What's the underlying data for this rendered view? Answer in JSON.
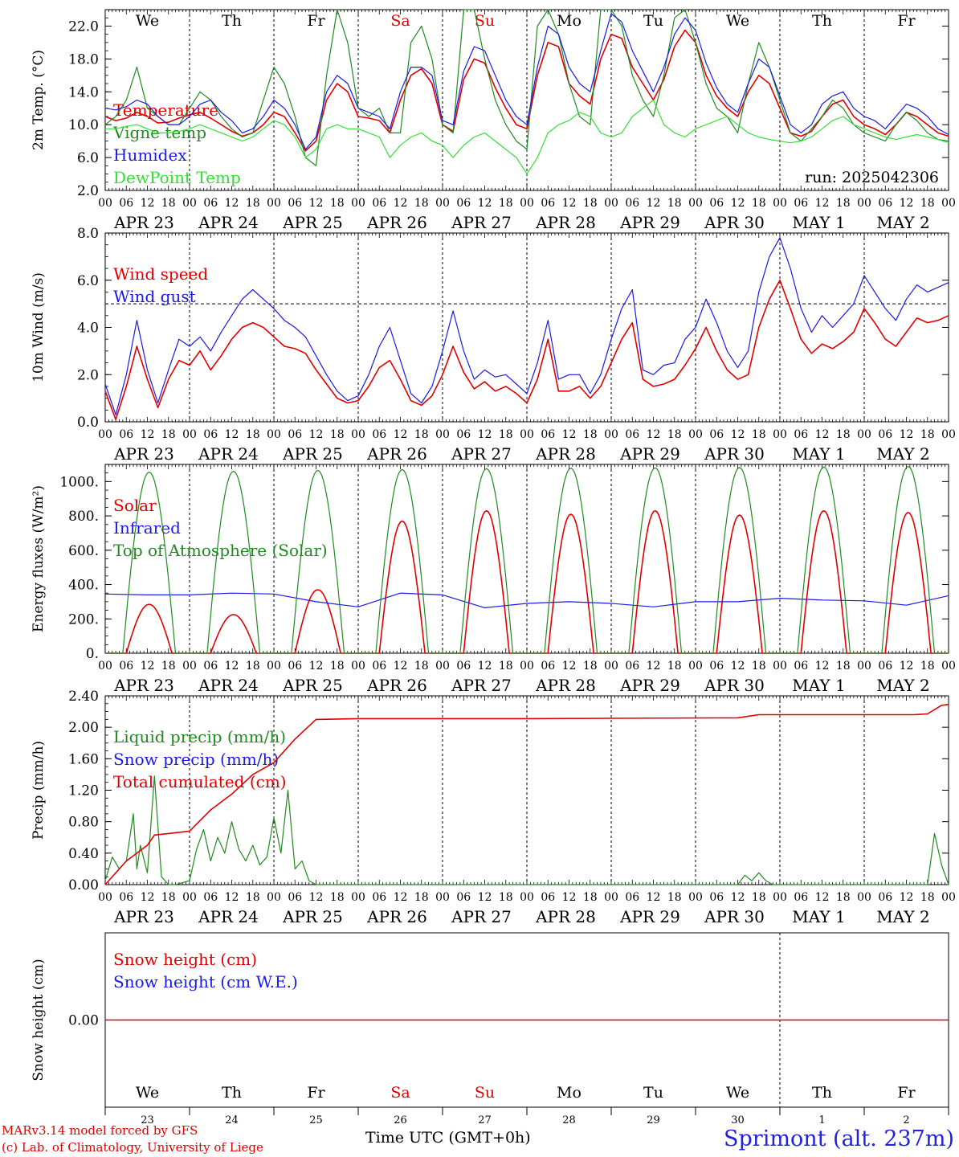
{
  "footer": {
    "credit_model": "MARv3.14 model forced by GFS",
    "credit_lab": "(c) Lab. of Climatology, University of Liege",
    "time_axis": "Time UTC (GMT+0h)",
    "station": "Sprimont (alt. 237m)"
  },
  "colors": {
    "red": "#e00000",
    "blue": "#1a1ae6",
    "green": "#1f8a1f",
    "lightgreen": "#33e033",
    "weekend": "#e00000"
  },
  "chart_data": [
    {
      "type": "line",
      "ylabel": "2m Temp. (°C)",
      "ylim": [
        2,
        24
      ],
      "yticks": [
        2,
        6,
        10,
        14,
        18,
        22
      ],
      "ytick_labels": [
        "2.0",
        "6.0",
        "10.0",
        "14.0",
        "18.0",
        "22.0"
      ],
      "hour_ticks": [
        "00",
        "06",
        "12",
        "18"
      ],
      "day_labels": [
        "APR 23",
        "APR 24",
        "APR 25",
        "APR 26",
        "APR 27",
        "APR 28",
        "APR 29",
        "APR 30",
        "MAY  1",
        "MAY  2"
      ],
      "weekdays": [
        "We",
        "Th",
        "Fr",
        "Sa",
        "Su",
        "Mo",
        "Tu",
        "We",
        "Th",
        "Fr"
      ],
      "weekend_days": [
        3,
        4
      ],
      "annotation": "run: 2025042306",
      "x_hours": [
        0,
        3,
        6,
        9,
        12,
        15,
        18,
        21,
        24,
        27,
        30,
        33,
        36,
        39,
        42,
        45,
        48,
        51,
        54,
        57,
        60,
        63,
        66,
        69,
        72,
        75,
        78,
        81,
        84,
        87,
        90,
        93,
        96,
        99,
        102,
        105,
        108,
        111,
        114,
        117,
        120,
        123,
        126,
        129,
        132,
        135,
        138,
        141,
        144,
        147,
        150,
        153,
        156,
        159,
        162,
        165,
        168,
        171,
        174,
        177,
        180,
        183,
        186,
        189,
        192,
        195,
        198,
        201,
        204,
        207,
        210,
        213,
        216,
        219,
        222,
        225,
        228,
        231,
        234,
        237,
        240
      ],
      "series": [
        {
          "name": "Temperature",
          "color": "red",
          "values": [
            11,
            10.5,
            10.8,
            11.5,
            11,
            10.2,
            10.3,
            10.8,
            11.2,
            11.5,
            10.8,
            10,
            9.2,
            8.6,
            9,
            10,
            11.5,
            11,
            9,
            6.8,
            8,
            13,
            15,
            14,
            11,
            10.8,
            10.5,
            9,
            13,
            16,
            16.8,
            15,
            10,
            9.2,
            15.5,
            18,
            17.5,
            14.5,
            12,
            10,
            9.5,
            16,
            20,
            19.5,
            15,
            13.5,
            12.5,
            18,
            21,
            20.5,
            17,
            15,
            13,
            15.5,
            19.5,
            21.5,
            20,
            16,
            13.5,
            12,
            11,
            14,
            16,
            15,
            12,
            9,
            8.6,
            9.2,
            11,
            12.5,
            13,
            11,
            10,
            9.5,
            8.8,
            10,
            11.5,
            11,
            10,
            9,
            8.6
          ]
        },
        {
          "name": "Vigne temp",
          "color": "green",
          "values": [
            10,
            11,
            13,
            17,
            12,
            11,
            10,
            10,
            12,
            14,
            13,
            11,
            9.5,
            8.5,
            9,
            13,
            17,
            15,
            11,
            6,
            5,
            16,
            24,
            20,
            12,
            11,
            12,
            9,
            9,
            20,
            22,
            18,
            10,
            9,
            24,
            24,
            18,
            13,
            10,
            8,
            7,
            22,
            24,
            21,
            15,
            11,
            10,
            24,
            24,
            22,
            16,
            13,
            11,
            16,
            23,
            24,
            20,
            15,
            12,
            11,
            9,
            15,
            20,
            17,
            13,
            9,
            8,
            9.5,
            11,
            13,
            12,
            10,
            9,
            8.5,
            8,
            10,
            11.5,
            10.5,
            9,
            8.2,
            8
          ]
        },
        {
          "name": "Humidex",
          "color": "blue",
          "values": [
            12,
            11.8,
            12.2,
            13,
            12.5,
            11,
            10,
            10,
            11,
            12.5,
            13,
            11.5,
            10.5,
            9,
            9.5,
            11,
            13,
            12,
            10,
            7,
            8.5,
            14,
            16,
            15,
            12,
            11.5,
            11,
            9.5,
            14,
            17,
            17,
            16,
            10.5,
            10,
            16.5,
            19.5,
            19,
            16,
            13,
            11,
            10,
            17,
            22,
            21,
            17,
            15,
            14,
            19,
            23.5,
            22.5,
            19,
            16.5,
            14,
            17,
            21,
            23,
            21.5,
            17.5,
            14.5,
            12.5,
            11.5,
            15,
            18,
            17,
            13.5,
            10,
            9,
            10,
            12.5,
            13.5,
            14,
            12,
            11,
            10.5,
            9.5,
            11,
            12.5,
            12,
            11,
            9.5,
            8.8
          ]
        },
        {
          "name": "DewPoint Temp",
          "color": "lightgreen",
          "values": [
            9.5,
            9.5,
            9.8,
            10,
            9.5,
            9,
            9,
            9.2,
            9.5,
            10,
            9.5,
            9,
            8.5,
            8,
            8.5,
            9.5,
            10.5,
            10,
            8.5,
            6,
            7,
            9.5,
            10,
            9.5,
            9.5,
            9,
            8.5,
            6,
            7.5,
            8.5,
            9,
            8,
            7.5,
            6,
            7.5,
            8.5,
            9,
            8,
            7,
            6,
            4,
            6,
            9,
            10,
            10.5,
            11.5,
            11,
            9,
            8.5,
            9,
            11,
            12,
            13,
            10,
            9,
            8.5,
            9.5,
            10,
            10.5,
            11,
            10,
            9,
            8.5,
            8.2,
            8,
            7.8,
            8,
            8.5,
            9.5,
            10.5,
            11,
            10,
            9.5,
            9,
            8.5,
            8.2,
            8.5,
            8.8,
            8.5,
            8.2,
            7.8
          ]
        }
      ]
    },
    {
      "type": "line",
      "ylabel": "10m Wind (m/s)",
      "ylim": [
        0,
        8
      ],
      "yticks": [
        0,
        2,
        4,
        6,
        8
      ],
      "ytick_labels": [
        "0.0",
        "2.0",
        "4.0",
        "6.0",
        "8.0"
      ],
      "hour_ticks": [
        "00",
        "06",
        "12",
        "18"
      ],
      "day_labels": [
        "APR 23",
        "APR 24",
        "APR 25",
        "APR 26",
        "APR 27",
        "APR 28",
        "APR 29",
        "APR 30",
        "MAY  1",
        "MAY  2"
      ],
      "reference_line": 5,
      "x_hours": [
        0,
        3,
        6,
        9,
        12,
        15,
        18,
        21,
        24,
        27,
        30,
        33,
        36,
        39,
        42,
        45,
        48,
        51,
        54,
        57,
        60,
        63,
        66,
        69,
        72,
        75,
        78,
        81,
        84,
        87,
        90,
        93,
        96,
        99,
        102,
        105,
        108,
        111,
        114,
        117,
        120,
        123,
        126,
        129,
        132,
        135,
        138,
        141,
        144,
        147,
        150,
        153,
        156,
        159,
        162,
        165,
        168,
        171,
        174,
        177,
        180,
        183,
        186,
        189,
        192,
        195,
        198,
        201,
        204,
        207,
        210,
        213,
        216,
        219,
        222,
        225,
        228,
        231,
        234,
        237,
        240
      ],
      "series": [
        {
          "name": "Wind speed",
          "color": "red",
          "values": [
            1.3,
            0.1,
            1.5,
            3.2,
            1.8,
            0.6,
            1.8,
            2.6,
            2.4,
            3.0,
            2.2,
            2.8,
            3.5,
            4.0,
            4.2,
            4.0,
            3.6,
            3.2,
            3.1,
            2.9,
            2.2,
            1.6,
            1.0,
            0.8,
            0.9,
            1.5,
            2.3,
            2.6,
            1.8,
            0.9,
            0.7,
            1.1,
            2.0,
            3.2,
            2.1,
            1.4,
            1.7,
            1.3,
            1.5,
            1.2,
            0.8,
            1.8,
            3.5,
            1.3,
            1.3,
            1.5,
            1.0,
            1.5,
            2.5,
            3.5,
            4.2,
            1.8,
            1.5,
            1.6,
            1.8,
            2.4,
            3.1,
            4.0,
            3.0,
            2.2,
            1.8,
            2.0,
            4.0,
            5.2,
            6.0,
            4.8,
            3.5,
            2.9,
            3.3,
            3.1,
            3.4,
            3.8,
            4.8,
            4.2,
            3.5,
            3.2,
            3.8,
            4.4,
            4.2,
            4.3,
            4.5
          ]
        },
        {
          "name": "Wind gust",
          "color": "blue",
          "values": [
            1.6,
            0.3,
            2.0,
            4.3,
            2.2,
            0.8,
            2.2,
            3.5,
            3.2,
            3.6,
            3.0,
            3.8,
            4.5,
            5.2,
            5.6,
            5.2,
            4.8,
            4.3,
            4.0,
            3.6,
            2.8,
            2.0,
            1.3,
            0.9,
            1.1,
            2.0,
            3.2,
            4.0,
            2.6,
            1.2,
            0.8,
            1.5,
            3.0,
            4.7,
            3.0,
            1.8,
            2.2,
            1.9,
            2.0,
            1.6,
            1.2,
            2.5,
            4.3,
            1.8,
            2.0,
            2.0,
            1.2,
            2.0,
            3.5,
            4.8,
            5.6,
            2.2,
            2.0,
            2.4,
            2.5,
            3.5,
            4.0,
            5.2,
            4.2,
            3.0,
            2.3,
            3.0,
            5.5,
            7.0,
            7.8,
            6.5,
            4.8,
            3.8,
            4.5,
            4.0,
            4.5,
            5.0,
            6.2,
            5.5,
            4.8,
            4.3,
            5.2,
            5.8,
            5.5,
            5.7,
            5.9
          ]
        }
      ]
    },
    {
      "type": "line",
      "ylabel": "Energy fluxes (W/m²)",
      "ylim": [
        0,
        1100
      ],
      "yticks": [
        0,
        200,
        400,
        600,
        800,
        1000
      ],
      "ytick_labels": [
        "0.",
        "200.",
        "400.",
        "600.",
        "800.",
        "1000."
      ],
      "hour_ticks": [
        "00",
        "06",
        "12",
        "18"
      ],
      "day_labels": [
        "APR 23",
        "APR 24",
        "APR 25",
        "APR 26",
        "APR 27",
        "APR 28",
        "APR 29",
        "APR 30",
        "MAY  1",
        "MAY  2"
      ],
      "solar_daily_peaks": [
        285,
        225,
        370,
        770,
        830,
        810,
        830,
        805,
        830,
        820
      ],
      "toa_daily_peaks": [
        1055,
        1060,
        1065,
        1070,
        1075,
        1078,
        1080,
        1082,
        1085,
        1088
      ],
      "series": [
        {
          "name": "Solar",
          "color": "red"
        },
        {
          "name": "Infrared",
          "color": "blue",
          "x_hours": [
            0,
            12,
            24,
            36,
            48,
            60,
            72,
            84,
            96,
            108,
            120,
            132,
            144,
            156,
            168,
            180,
            192,
            204,
            216,
            228,
            240
          ],
          "values": [
            345,
            340,
            340,
            350,
            345,
            300,
            270,
            350,
            340,
            265,
            290,
            300,
            290,
            270,
            300,
            300,
            320,
            310,
            305,
            280,
            335
          ]
        },
        {
          "name": "Top of Atmosphere (Solar)",
          "color": "green"
        }
      ]
    },
    {
      "type": "line",
      "ylabel": "Precip (mm/h)",
      "ylim": [
        0,
        2.4
      ],
      "yticks": [
        0,
        0.4,
        0.8,
        1.2,
        1.6,
        2.0,
        2.4
      ],
      "ytick_labels": [
        "0.00",
        "0.40",
        "0.80",
        "1.20",
        "1.60",
        "2.00",
        "2.40"
      ],
      "hour_ticks": [
        "00",
        "06",
        "12",
        "18"
      ],
      "day_labels": [
        "APR 23",
        "APR 24",
        "APR 25",
        "APR 26",
        "APR 27",
        "APR 28",
        "APR 29",
        "APR 30",
        "MAY  1",
        "MAY  2"
      ],
      "series": [
        {
          "name": "Liquid precip (mm/h)",
          "color": "green",
          "x_hours": [
            0,
            2,
            4,
            6,
            8,
            9,
            10,
            12,
            14,
            16,
            18,
            20,
            24,
            26,
            28,
            30,
            32,
            34,
            36,
            38,
            40,
            42,
            44,
            46,
            48,
            50,
            52,
            54,
            56,
            58,
            60,
            72,
            180,
            182,
            184,
            186,
            188,
            190,
            192,
            234,
            236,
            238,
            240
          ],
          "values": [
            0.05,
            0.35,
            0.2,
            0.3,
            0.9,
            0.2,
            0.5,
            0.15,
            1.38,
            0.1,
            0,
            0,
            0.05,
            0.45,
            0.7,
            0.3,
            0.6,
            0.4,
            0.8,
            0.45,
            0.3,
            0.5,
            0.25,
            0.35,
            0.85,
            0.4,
            1.2,
            0.2,
            0.3,
            0.05,
            0,
            0,
            0,
            0.12,
            0.05,
            0.15,
            0.05,
            0,
            0,
            0,
            0.65,
            0.25,
            0
          ]
        },
        {
          "name": "Snow precip (mm/h)",
          "color": "blue"
        },
        {
          "name": "Total cumulated (cm)",
          "color": "red",
          "x_hours": [
            0,
            6,
            12,
            14,
            18,
            24,
            30,
            36,
            42,
            48,
            54,
            60,
            72,
            120,
            180,
            186,
            192,
            230,
            234,
            238,
            240
          ],
          "values": [
            0,
            0.3,
            0.5,
            0.63,
            0.65,
            0.68,
            0.95,
            1.15,
            1.4,
            1.55,
            1.85,
            2.1,
            2.11,
            2.11,
            2.12,
            2.16,
            2.16,
            2.16,
            2.17,
            2.28,
            2.29
          ]
        }
      ]
    },
    {
      "type": "line",
      "ylabel": "Snow height (cm)",
      "ylim": [
        -1,
        1
      ],
      "yticks": [
        0
      ],
      "ytick_labels": [
        "0.00"
      ],
      "weekdays": [
        "We",
        "Th",
        "Fr",
        "Sa",
        "Su",
        "Mo",
        "Tu",
        "We",
        "Th",
        "Fr"
      ],
      "day_numbers": [
        "23",
        "24",
        "25",
        "26",
        "27",
        "28",
        "29",
        "30",
        "1",
        "2"
      ],
      "weekend_days": [
        3,
        4
      ],
      "series": [
        {
          "name": "Snow height (cm)",
          "color": "red",
          "values": [
            0,
            0
          ]
        },
        {
          "name": "Snow height (cm W.E.)",
          "color": "blue"
        }
      ]
    }
  ]
}
